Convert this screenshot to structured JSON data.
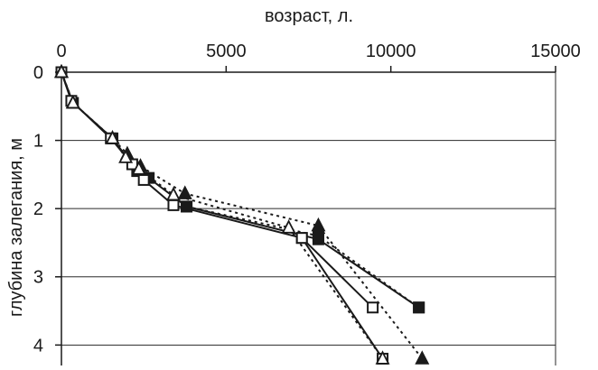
{
  "chart_data": {
    "type": "scatter",
    "title": "",
    "xlabel": "возраст, л.",
    "ylabel": "глубина залегания, м",
    "x_axis_position": "top",
    "y_inverted": true,
    "xlim": [
      0,
      15000
    ],
    "ylim": [
      0,
      4.3
    ],
    "xticks": [
      0,
      5000,
      10000,
      15000
    ],
    "yticks": [
      0,
      1,
      2,
      3,
      4
    ],
    "x_tick_labels": [
      "0",
      "5000",
      "10000",
      "15000"
    ],
    "y_tick_labels": [
      "0",
      "1",
      "2",
      "3",
      "4"
    ],
    "grid": "horizontal",
    "legend": "none",
    "series": [
      {
        "marker": "filled-square",
        "line": "solid",
        "color": "#1a1a1a",
        "points": [
          [
            0,
            0
          ],
          [
            350,
            0.45
          ],
          [
            1550,
            0.97
          ],
          [
            2300,
            1.45
          ],
          [
            2650,
            1.55
          ],
          [
            3800,
            1.97
          ],
          [
            7800,
            2.45
          ],
          [
            10850,
            3.45
          ]
        ]
      },
      {
        "marker": "open-square",
        "line": "solid",
        "color": "#1a1a1a",
        "points": [
          [
            0,
            0
          ],
          [
            300,
            0.42
          ],
          [
            1500,
            0.97
          ],
          [
            2150,
            1.35
          ],
          [
            2500,
            1.58
          ],
          [
            3400,
            1.95
          ],
          [
            7300,
            2.43
          ],
          [
            9750,
            4.2
          ]
        ]
      },
      {
        "marker": "open-square",
        "line": "solid",
        "color": "#1a1a1a",
        "points": [
          [
            7300,
            2.43
          ],
          [
            9450,
            3.45
          ]
        ]
      },
      {
        "marker": "filled-triangle",
        "line": "dotted",
        "color": "#1a1a1a",
        "points": [
          [
            0,
            0
          ],
          [
            350,
            0.45
          ],
          [
            1550,
            0.97
          ],
          [
            2000,
            1.2
          ],
          [
            2400,
            1.38
          ],
          [
            3750,
            1.78
          ],
          [
            7800,
            2.25
          ],
          [
            10950,
            4.2
          ]
        ]
      },
      {
        "marker": "open-triangle",
        "line": "dotted",
        "color": "#1a1a1a",
        "points": [
          [
            0,
            0
          ],
          [
            350,
            0.45
          ],
          [
            1550,
            0.97
          ],
          [
            1950,
            1.25
          ],
          [
            2350,
            1.42
          ],
          [
            3400,
            1.8
          ],
          [
            6900,
            2.28
          ],
          [
            9750,
            4.2
          ]
        ]
      },
      {
        "marker": "filled-square",
        "line": "dotted",
        "color": "#1a1a1a",
        "points": [
          [
            3800,
            1.97
          ],
          [
            7800,
            2.4
          ],
          [
            10850,
            3.45
          ]
        ]
      }
    ]
  }
}
